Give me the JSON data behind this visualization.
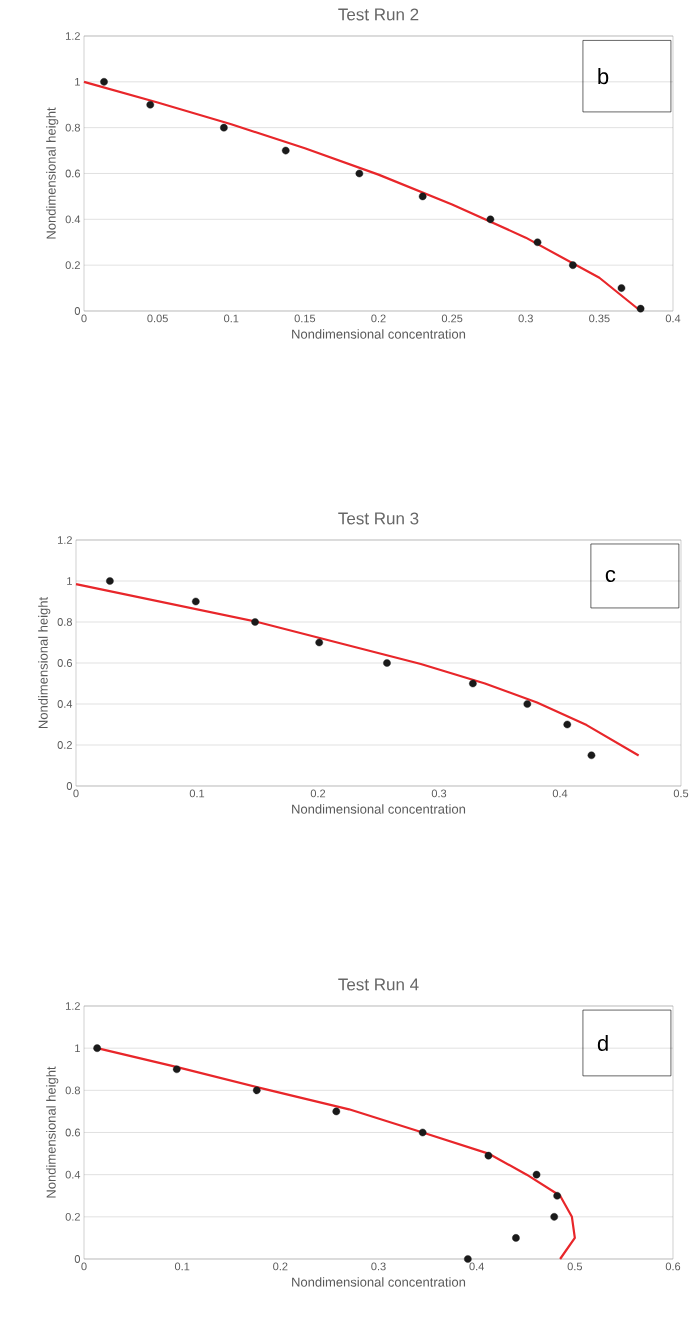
{
  "chart_data": [
    {
      "type": "scatter",
      "title": "Test Run 2",
      "xlabel": "Nondimensional concentration",
      "ylabel": "Nondimensional height",
      "annotations": [
        "b"
      ],
      "xlim": [
        0,
        0.4
      ],
      "ylim": [
        0,
        1.2
      ],
      "xticks": [
        0,
        0.05,
        0.1,
        0.15,
        0.2,
        0.25,
        0.3,
        0.35,
        0.4
      ],
      "yticks": [
        0,
        0.2,
        0.4,
        0.6,
        0.8,
        1,
        1.2
      ],
      "grid": "y",
      "series": [
        {
          "marker": "circle",
          "color": "#1a1a1a",
          "x": [
            0.0136,
            0.045,
            0.095,
            0.137,
            0.187,
            0.23,
            0.276,
            0.308,
            0.332,
            0.365,
            0.378
          ],
          "values": [
            1,
            0.9,
            0.8,
            0.7,
            0.6,
            0.5,
            0.4,
            0.3,
            0.2,
            0.1,
            0.01
          ]
        },
        {
          "type": "line",
          "marker": "none",
          "line_style": "solid",
          "color": "#e8262a",
          "x": [
            0,
            0.05,
            0.1,
            0.15,
            0.2,
            0.25,
            0.3,
            0.35,
            0.378
          ],
          "values": [
            1,
            0.91,
            0.815,
            0.71,
            0.595,
            0.465,
            0.32,
            0.145,
            0
          ]
        }
      ]
    },
    {
      "type": "scatter",
      "title": "Test Run 3",
      "xlabel": "Nondimensional concentration",
      "ylabel": "Nondimensional height",
      "annotations": [
        "c"
      ],
      "xlim": [
        0,
        0.5
      ],
      "ylim": [
        0,
        1.2
      ],
      "xticks": [
        0,
        0.1,
        0.2,
        0.3,
        0.4,
        0.5
      ],
      "yticks": [
        0,
        0.2,
        0.4,
        0.6,
        0.8,
        1,
        1.2
      ],
      "grid": "y",
      "series": [
        {
          "marker": "circle",
          "color": "#1a1a1a",
          "x": [
            0.028,
            0.099,
            0.148,
            0.201,
            0.257,
            0.328,
            0.373,
            0.406,
            0.426
          ],
          "values": [
            1,
            0.9,
            0.8,
            0.7,
            0.6,
            0.5,
            0.4,
            0.3,
            0.15
          ]
        },
        {
          "type": "line",
          "marker": "none",
          "line_style": "solid",
          "color": "#e8262a",
          "x": [
            0,
            0.15,
            0.285,
            0.338,
            0.381,
            0.422,
            0.465
          ],
          "values": [
            0.985,
            0.8,
            0.595,
            0.5,
            0.407,
            0.297,
            0.149
          ]
        }
      ]
    },
    {
      "type": "scatter",
      "title": "Test Run 4",
      "xlabel": "Nondimensional concentration",
      "ylabel": "Nondimensional height",
      "annotations": [
        "d"
      ],
      "xlim": [
        0,
        0.6
      ],
      "ylim": [
        0,
        1.2
      ],
      "xticks": [
        0,
        0.1,
        0.2,
        0.3,
        0.4,
        0.5,
        0.6
      ],
      "yticks": [
        0,
        0.2,
        0.4,
        0.6,
        0.8,
        1,
        1.2
      ],
      "grid": "y",
      "series": [
        {
          "marker": "circle",
          "color": "#1a1a1a",
          "x": [
            0.0134,
            0.0945,
            0.176,
            0.257,
            0.345,
            0.412,
            0.461,
            0.482,
            0.479,
            0.44,
            0.391
          ],
          "values": [
            1,
            0.9,
            0.8,
            0.7,
            0.6,
            0.49,
            0.4,
            0.3,
            0.2,
            0.1,
            0
          ]
        },
        {
          "type": "line",
          "marker": "none",
          "line_style": "solid",
          "color": "#e8262a",
          "x": [
            0.0134,
            0.095,
            0.176,
            0.27,
            0.345,
            0.412,
            0.451,
            0.485,
            0.497,
            0.5,
            0.485
          ],
          "values": [
            1,
            0.91,
            0.815,
            0.71,
            0.6,
            0.5,
            0.4,
            0.3,
            0.2,
            0.1,
            0
          ]
        }
      ]
    }
  ]
}
